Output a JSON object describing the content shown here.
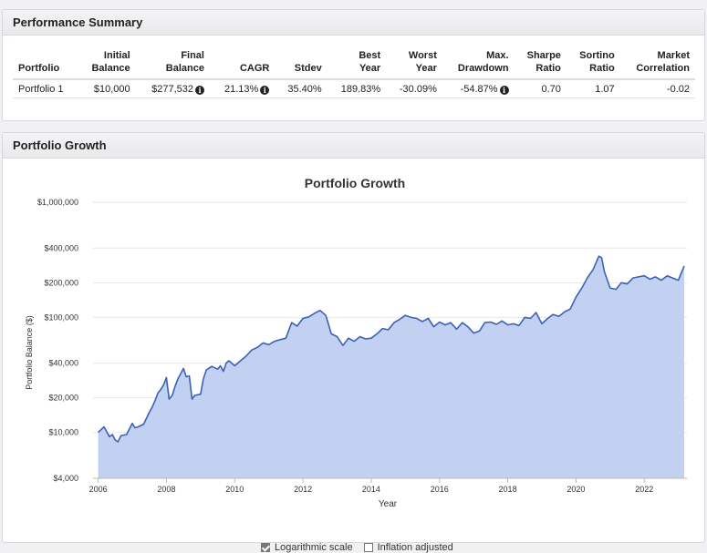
{
  "summary": {
    "title": "Performance Summary",
    "columns": [
      [
        "Portfolio",
        ""
      ],
      [
        "Initial",
        "Balance"
      ],
      [
        "Final",
        "Balance"
      ],
      [
        "CAGR",
        ""
      ],
      [
        "Stdev",
        ""
      ],
      [
        "Best",
        "Year"
      ],
      [
        "Worst",
        "Year"
      ],
      [
        "Max.",
        "Drawdown"
      ],
      [
        "Sharpe",
        "Ratio"
      ],
      [
        "Sortino",
        "Ratio"
      ],
      [
        "Market",
        "Correlation"
      ]
    ],
    "row": {
      "portfolio": "Portfolio 1",
      "initial_balance": "$10,000",
      "final_balance": "$277,532",
      "cagr": "21.13%",
      "stdev": "35.40%",
      "best_year": "189.83%",
      "worst_year": "-30.09%",
      "max_drawdown": "-54.87%",
      "sharpe": "0.70",
      "sortino": "1.07",
      "market_correlation": "-0.02"
    }
  },
  "growth": {
    "title": "Portfolio Growth",
    "legend": {
      "log_label": "Logarithmic scale",
      "log_checked": true,
      "inflation_label": "Inflation adjusted",
      "inflation_checked": false
    }
  },
  "chart_data": {
    "type": "area",
    "title": "Portfolio Growth",
    "xlabel": "Year",
    "ylabel": "Portfolio Balance ($)",
    "yscale": "log",
    "ylim": [
      4000,
      1000000
    ],
    "xlim": [
      2005.85,
      2023.25
    ],
    "y_ticks": [
      4000,
      10000,
      20000,
      40000,
      100000,
      200000,
      400000,
      1000000
    ],
    "y_tick_labels": [
      "$4,000",
      "$10,000",
      "$20,000",
      "$40,000",
      "$100,000",
      "$200,000",
      "$400,000",
      "$1,000,000"
    ],
    "x_ticks": [
      2006,
      2008,
      2010,
      2012,
      2014,
      2016,
      2018,
      2020,
      2022
    ],
    "x_tick_labels": [
      "2006",
      "2008",
      "2010",
      "2012",
      "2014",
      "2016",
      "2018",
      "2020",
      "2022"
    ],
    "grid": true,
    "fill_color": "#c2d1f2",
    "line_color": "#3b62b5",
    "series": [
      {
        "x": [
          2006.0,
          2006.17,
          2006.33,
          2006.42,
          2006.5,
          2006.58,
          2006.67,
          2006.83,
          2007.0,
          2007.08,
          2007.17,
          2007.33,
          2007.5,
          2007.58,
          2007.67,
          2007.75,
          2007.83,
          2007.92,
          2008.0,
          2008.08,
          2008.17,
          2008.25,
          2008.33,
          2008.5,
          2008.58,
          2008.67,
          2008.75,
          2008.83,
          2009.0,
          2009.08,
          2009.17,
          2009.33,
          2009.5,
          2009.58,
          2009.67,
          2009.75,
          2009.83,
          2010.0,
          2010.17,
          2010.33,
          2010.5,
          2010.67,
          2010.83,
          2011.0,
          2011.17,
          2011.33,
          2011.5,
          2011.67,
          2011.83,
          2012.0,
          2012.17,
          2012.33,
          2012.5,
          2012.67,
          2012.83,
          2013.0,
          2013.17,
          2013.33,
          2013.5,
          2013.67,
          2013.83,
          2014.0,
          2014.17,
          2014.33,
          2014.5,
          2014.67,
          2014.83,
          2015.0,
          2015.17,
          2015.33,
          2015.5,
          2015.67,
          2015.83,
          2016.0,
          2016.17,
          2016.33,
          2016.5,
          2016.67,
          2016.83,
          2017.0,
          2017.17,
          2017.33,
          2017.5,
          2017.67,
          2017.83,
          2018.0,
          2018.17,
          2018.33,
          2018.5,
          2018.67,
          2018.83,
          2019.0,
          2019.17,
          2019.33,
          2019.5,
          2019.67,
          2019.83,
          2020.0,
          2020.17,
          2020.33,
          2020.5,
          2020.67,
          2020.75,
          2020.83,
          2021.0,
          2021.17,
          2021.33,
          2021.5,
          2021.67,
          2021.83,
          2022.0,
          2022.17,
          2022.33,
          2022.5,
          2022.67,
          2022.83,
          2023.0,
          2023.17
        ],
        "y": [
          10000,
          11200,
          9200,
          9600,
          8600,
          8300,
          9400,
          9600,
          12000,
          11000,
          11200,
          11800,
          15000,
          16500,
          19000,
          22000,
          23500,
          26000,
          30000,
          19500,
          21000,
          25000,
          29000,
          36000,
          30500,
          31000,
          19500,
          21000,
          21500,
          29000,
          35000,
          37500,
          35500,
          38000,
          34000,
          40000,
          42000,
          38000,
          42000,
          46000,
          52000,
          55000,
          60000,
          58000,
          62000,
          64000,
          66000,
          90000,
          84000,
          98000,
          101000,
          108000,
          115000,
          104000,
          72000,
          68000,
          57000,
          66000,
          62000,
          68000,
          65000,
          66000,
          72000,
          80000,
          78000,
          90000,
          96000,
          104000,
          100000,
          98000,
          92000,
          98000,
          83000,
          91000,
          86000,
          90000,
          79000,
          90000,
          83000,
          73000,
          76000,
          90000,
          91000,
          87000,
          93000,
          86000,
          88000,
          85000,
          100000,
          98000,
          110000,
          88000,
          98000,
          106000,
          102000,
          112000,
          118000,
          150000,
          180000,
          220000,
          260000,
          340000,
          330000,
          250000,
          180000,
          175000,
          200000,
          195000,
          220000,
          225000,
          230000,
          215000,
          225000,
          210000,
          230000,
          220000,
          210000,
          280000
        ]
      }
    ]
  }
}
